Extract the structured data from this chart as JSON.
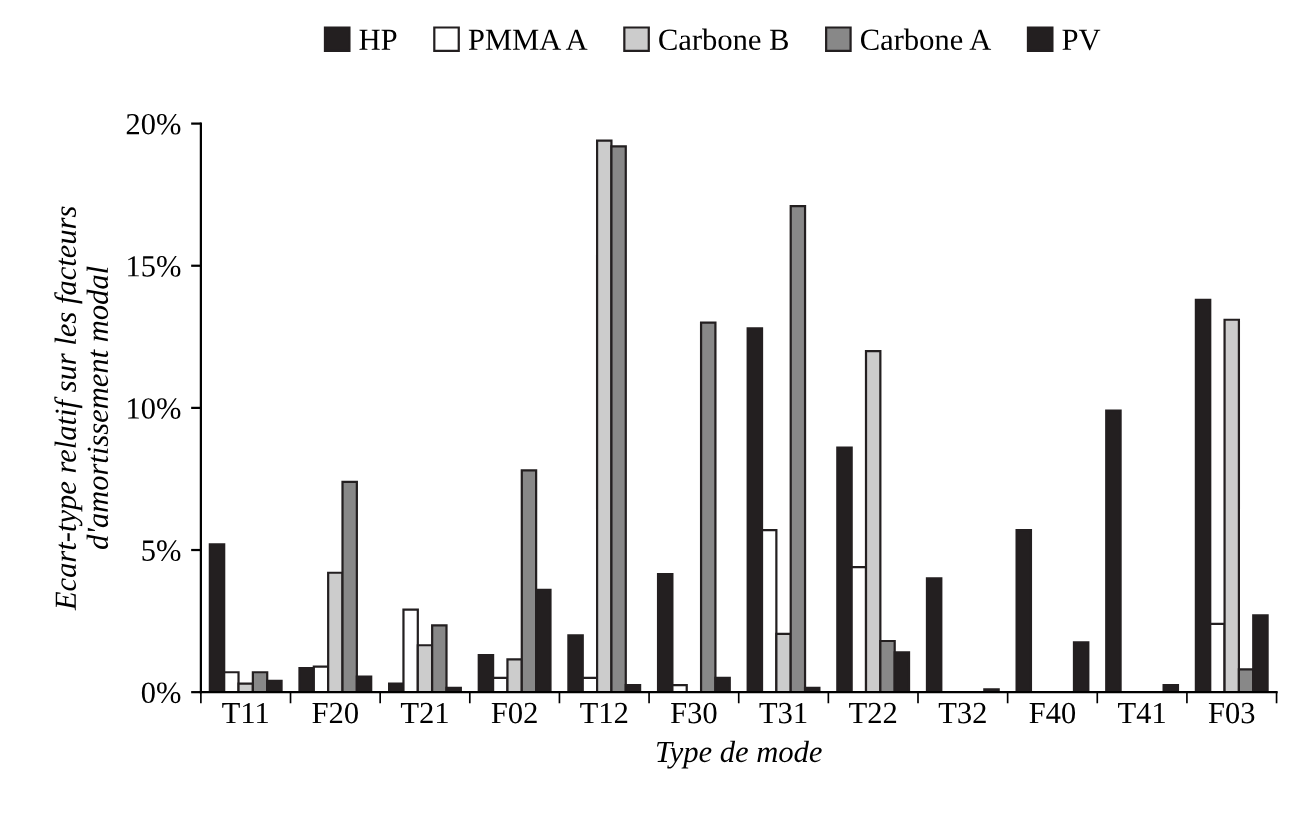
{
  "chart_data": {
    "type": "bar",
    "xlabel": "Type de mode",
    "ylabel": "Ecart-type relatif sur les facteurs\nd'amortissement modal",
    "categories": [
      "T11",
      "F20",
      "T21",
      "F02",
      "T12",
      "F30",
      "T31",
      "T22",
      "T32",
      "F40",
      "T41",
      "F03"
    ],
    "series": [
      {
        "name": "HP",
        "color": "#231f20",
        "values": [
          5.2,
          0.85,
          0.3,
          1.3,
          2.0,
          4.15,
          12.8,
          8.6,
          4.0,
          5.7,
          9.9,
          13.8
        ]
      },
      {
        "name": "PMMA A",
        "color": "#ffffff",
        "values": [
          0.7,
          0.9,
          2.9,
          0.5,
          0.5,
          0.25,
          5.7,
          4.4,
          null,
          null,
          null,
          2.4
        ]
      },
      {
        "name": "Carbone B",
        "color": "#cccccc",
        "values": [
          0.3,
          4.2,
          1.65,
          1.15,
          19.4,
          null,
          2.05,
          12.0,
          null,
          null,
          null,
          13.1
        ]
      },
      {
        "name": "Carbone A",
        "color": "#888888",
        "values": [
          0.7,
          7.4,
          2.35,
          7.8,
          19.2,
          13.0,
          17.1,
          1.8,
          null,
          null,
          null,
          0.8
        ]
      },
      {
        "name": "PV",
        "color": "#231f20",
        "values": [
          0.4,
          0.55,
          0.15,
          3.6,
          0.25,
          0.5,
          0.15,
          1.4,
          0.1,
          1.75,
          0.25,
          2.7
        ]
      }
    ],
    "ylim": [
      0,
      20
    ],
    "yticks": [
      {
        "value": 0,
        "label": "0%"
      },
      {
        "value": 5,
        "label": "5%"
      },
      {
        "value": 10,
        "label": "10%"
      },
      {
        "value": 15,
        "label": "15%"
      },
      {
        "value": 20,
        "label": "20%"
      }
    ],
    "grid": false,
    "legend": "top"
  }
}
